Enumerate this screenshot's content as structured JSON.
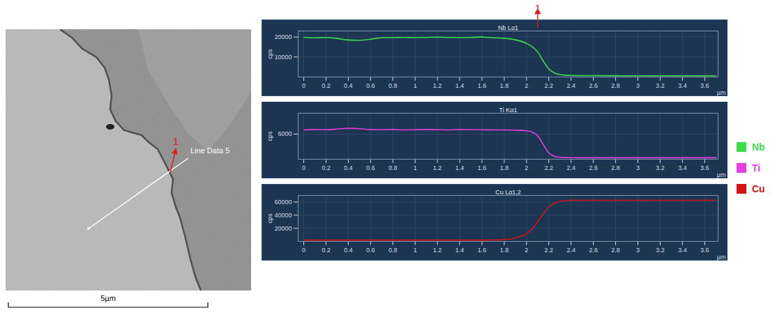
{
  "image": {
    "line_label": "Line Data 5",
    "marker": "1",
    "scale_bar": "5µm"
  },
  "chart_data": [
    {
      "type": "line",
      "title": "Nb Lα1",
      "ylabel": "cps",
      "xlabel": "µm",
      "x": [
        0,
        0.1,
        0.2,
        0.3,
        0.4,
        0.5,
        0.6,
        0.7,
        0.8,
        0.9,
        1.0,
        1.1,
        1.2,
        1.3,
        1.4,
        1.5,
        1.6,
        1.7,
        1.8,
        1.9,
        2.0,
        2.05,
        2.1,
        2.15,
        2.2,
        2.25,
        2.3,
        2.35,
        2.4,
        2.5,
        2.6,
        2.7,
        2.8,
        2.9,
        3.0,
        3.1,
        3.2,
        3.3,
        3.4,
        3.5,
        3.6,
        3.7
      ],
      "series": [
        {
          "name": "Nb",
          "color": "#3ddc4a",
          "values": [
            19800,
            19600,
            19700,
            19300,
            18500,
            18400,
            18900,
            19600,
            19700,
            19800,
            19700,
            19800,
            19900,
            19800,
            19700,
            19800,
            20000,
            19600,
            19400,
            18600,
            16800,
            15200,
            12500,
            8000,
            4000,
            2000,
            1200,
            900,
            800,
            700,
            700,
            650,
            650,
            600,
            600,
            600,
            600,
            600,
            600,
            600,
            600,
            600
          ]
        }
      ],
      "xlim": [
        -0.05,
        3.72
      ],
      "xticks": [
        0,
        0.2,
        0.4,
        0.6,
        0.8,
        1,
        1.2,
        1.4,
        1.6,
        1.8,
        2,
        2.2,
        2.4,
        2.6,
        2.8,
        3,
        3.2,
        3.4,
        3.6
      ],
      "ylim": [
        0,
        23000
      ],
      "yticks": [
        10000,
        20000
      ],
      "grid": true,
      "legend": "right",
      "annotations": [
        {
          "text": "1",
          "x": 2.1
        }
      ]
    },
    {
      "type": "line",
      "title": "Ti Kα1",
      "ylabel": "cps",
      "xlabel": "µm",
      "x": [
        0,
        0.1,
        0.2,
        0.3,
        0.4,
        0.5,
        0.6,
        0.7,
        0.8,
        0.9,
        1.0,
        1.1,
        1.2,
        1.3,
        1.4,
        1.5,
        1.6,
        1.7,
        1.8,
        1.9,
        2.0,
        2.05,
        2.1,
        2.15,
        2.2,
        2.25,
        2.3,
        2.35,
        2.4,
        2.5,
        2.6,
        2.7,
        2.8,
        2.9,
        3.0,
        3.1,
        3.2,
        3.3,
        3.4,
        3.5,
        3.6,
        3.7
      ],
      "series": [
        {
          "name": "Ti",
          "color": "#e53fe0",
          "values": [
            7000,
            7100,
            7050,
            7200,
            7400,
            7300,
            7100,
            7050,
            7100,
            7000,
            7050,
            7100,
            7050,
            7000,
            7100,
            7050,
            7050,
            7000,
            7000,
            6950,
            6800,
            6500,
            5600,
            3500,
            1500,
            700,
            450,
            400,
            380,
            350,
            350,
            350,
            350,
            350,
            350,
            350,
            350,
            350,
            350,
            350,
            350,
            350
          ]
        }
      ],
      "xlim": [
        -0.05,
        3.72
      ],
      "xticks": [
        0,
        0.2,
        0.4,
        0.6,
        0.8,
        1,
        1.2,
        1.4,
        1.6,
        1.8,
        2,
        2.2,
        2.4,
        2.6,
        2.8,
        3,
        3.2,
        3.4,
        3.6
      ],
      "ylim": [
        0,
        11000
      ],
      "yticks": [
        6000
      ],
      "grid": true,
      "legend": "right"
    },
    {
      "type": "line",
      "title": "Cu Lα1,2",
      "ylabel": "cps",
      "xlabel": "µm",
      "x": [
        0,
        0.1,
        0.2,
        0.3,
        0.4,
        0.5,
        0.6,
        0.7,
        0.8,
        0.9,
        1.0,
        1.1,
        1.2,
        1.3,
        1.4,
        1.5,
        1.6,
        1.7,
        1.8,
        1.9,
        2.0,
        2.05,
        2.1,
        2.15,
        2.2,
        2.25,
        2.3,
        2.35,
        2.4,
        2.5,
        2.6,
        2.7,
        2.8,
        2.9,
        3.0,
        3.1,
        3.2,
        3.3,
        3.4,
        3.5,
        3.6,
        3.7
      ],
      "series": [
        {
          "name": "Cu",
          "color": "#d41414",
          "values": [
            2000,
            2000,
            2000,
            2000,
            2000,
            2000,
            2000,
            2000,
            2000,
            2000,
            2000,
            2000,
            2000,
            2000,
            2000,
            2000,
            2000,
            2200,
            2800,
            5000,
            12000,
            19000,
            30000,
            42000,
            52000,
            58000,
            61000,
            62000,
            62500,
            62500,
            62500,
            62500,
            62500,
            62500,
            62500,
            62500,
            62500,
            62500,
            62500,
            62500,
            62500,
            62500
          ]
        }
      ],
      "xlim": [
        -0.05,
        3.72
      ],
      "xticks": [
        0,
        0.2,
        0.4,
        0.6,
        0.8,
        1,
        1.2,
        1.4,
        1.6,
        1.8,
        2,
        2.2,
        2.4,
        2.6,
        2.8,
        3,
        3.2,
        3.4,
        3.6
      ],
      "ylim": [
        0,
        70000
      ],
      "yticks": [
        20000,
        40000,
        60000
      ],
      "grid": true,
      "legend": "right"
    }
  ]
}
